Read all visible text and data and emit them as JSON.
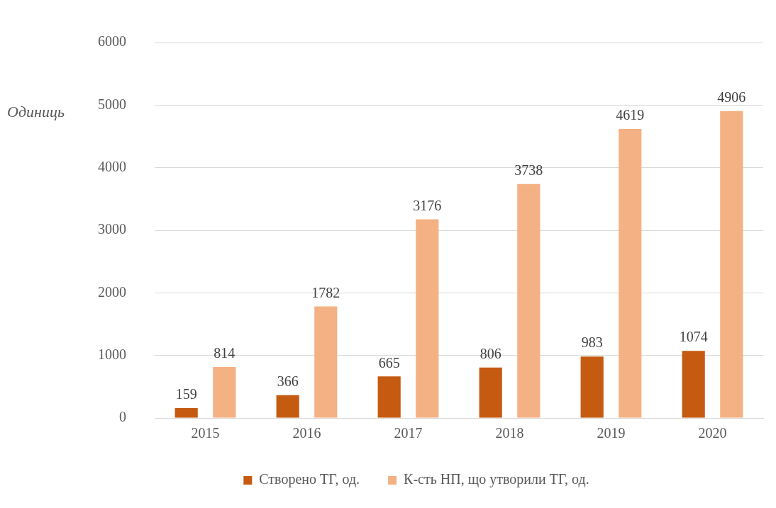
{
  "chart_data": {
    "type": "bar",
    "ylabel": "Одиниць",
    "categories": [
      "2015",
      "2016",
      "2017",
      "2018",
      "2019",
      "2020"
    ],
    "series": [
      {
        "name": "Створено ТГ, од.",
        "color": "#c55a11",
        "values": [
          159,
          366,
          665,
          806,
          983,
          1074
        ]
      },
      {
        "name": "К-сть НП, що утворили ТГ, од.",
        "color": "#f4b183",
        "values": [
          814,
          1782,
          3176,
          3738,
          4619,
          4906
        ]
      }
    ],
    "ylim": [
      0,
      6000
    ],
    "yticks": [
      0,
      1000,
      2000,
      3000,
      4000,
      5000,
      6000
    ],
    "grid": "y",
    "legend": "bottom",
    "data_labels": true
  }
}
